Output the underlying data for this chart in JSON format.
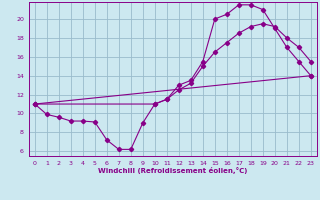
{
  "xlabel": "Windchill (Refroidissement éolien,°C)",
  "bg_color": "#cce8f0",
  "line_color": "#880088",
  "grid_color": "#99bbcc",
  "xlim": [
    -0.5,
    23.5
  ],
  "ylim": [
    5.5,
    21.8
  ],
  "yticks": [
    6,
    8,
    10,
    12,
    14,
    16,
    18,
    20
  ],
  "xticks": [
    0,
    1,
    2,
    3,
    4,
    5,
    6,
    7,
    8,
    9,
    10,
    11,
    12,
    13,
    14,
    15,
    16,
    17,
    18,
    19,
    20,
    21,
    22,
    23
  ],
  "line1_x": [
    0,
    1,
    2,
    3,
    4,
    5,
    6,
    7,
    8,
    9,
    10,
    11,
    12,
    13,
    14,
    15,
    16,
    17,
    18,
    19,
    20,
    21,
    22,
    23
  ],
  "line1_y": [
    11.0,
    9.9,
    9.6,
    9.2,
    9.2,
    9.1,
    7.2,
    6.2,
    6.2,
    9.0,
    11.0,
    11.5,
    13.0,
    13.5,
    15.5,
    20.0,
    20.5,
    21.5,
    21.5,
    21.0,
    19.0,
    17.0,
    15.5,
    14.0
  ],
  "line2_x": [
    0,
    10,
    11,
    12,
    13,
    14,
    15,
    16,
    17,
    18,
    19,
    20,
    21,
    22,
    23
  ],
  "line2_y": [
    11.0,
    11.0,
    11.5,
    12.5,
    13.2,
    15.0,
    16.5,
    17.5,
    18.5,
    19.2,
    19.5,
    19.2,
    18.0,
    17.0,
    15.5
  ],
  "line3_x": [
    0,
    23
  ],
  "line3_y": [
    11.0,
    14.0
  ]
}
